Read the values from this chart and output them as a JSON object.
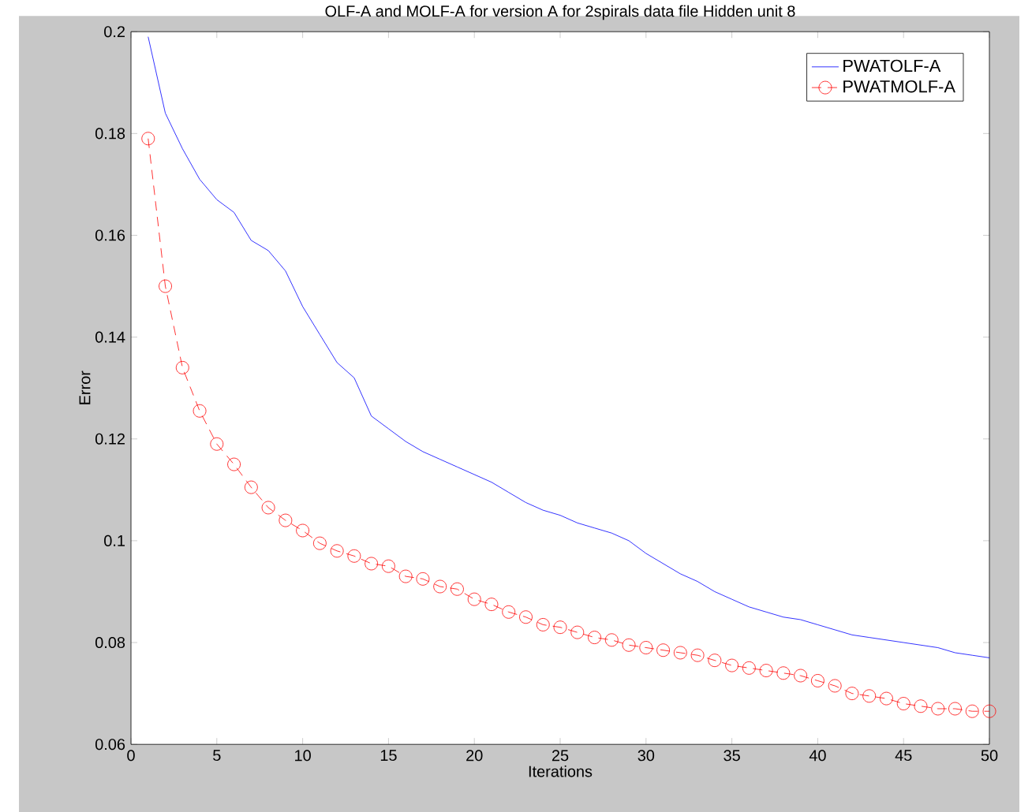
{
  "chart_data": {
    "type": "line",
    "title": "OLF-A and MOLF-A for version A for 2spirals data file Hidden unit 8",
    "xlabel": "Iterations",
    "ylabel": "Error",
    "x": [
      1,
      2,
      3,
      4,
      5,
      6,
      7,
      8,
      9,
      10,
      11,
      12,
      13,
      14,
      15,
      16,
      17,
      18,
      19,
      20,
      21,
      22,
      23,
      24,
      25,
      26,
      27,
      28,
      29,
      30,
      31,
      32,
      33,
      34,
      35,
      36,
      37,
      38,
      39,
      40,
      41,
      42,
      43,
      44,
      45,
      46,
      47,
      48,
      49,
      50
    ],
    "series": [
      {
        "name": "PWATOLF-A",
        "color": "#0000ff",
        "marker": "none",
        "line_style": "solid",
        "values": [
          0.199,
          0.184,
          0.177,
          0.171,
          0.167,
          0.1645,
          0.159,
          0.157,
          0.153,
          0.146,
          0.1405,
          0.135,
          0.132,
          0.1245,
          0.122,
          0.1195,
          0.1175,
          0.116,
          0.1145,
          0.113,
          0.1115,
          0.1095,
          0.1075,
          0.106,
          0.105,
          0.1035,
          0.1025,
          0.1015,
          0.1,
          0.0975,
          0.0955,
          0.0935,
          0.092,
          0.09,
          0.0885,
          0.087,
          0.086,
          0.085,
          0.0845,
          0.0835,
          0.0825,
          0.0815,
          0.081,
          0.0805,
          0.08,
          0.0795,
          0.079,
          0.078,
          0.0775,
          0.077
        ]
      },
      {
        "name": "PWATMOLF-A",
        "color": "#ff0000",
        "marker": "circle",
        "line_style": "dashed",
        "values": [
          0.179,
          0.15,
          0.134,
          0.1255,
          0.119,
          0.115,
          0.1105,
          0.1065,
          0.104,
          0.102,
          0.0995,
          0.098,
          0.097,
          0.0955,
          0.095,
          0.093,
          0.0925,
          0.091,
          0.0905,
          0.0885,
          0.0875,
          0.086,
          0.085,
          0.0835,
          0.083,
          0.082,
          0.081,
          0.0805,
          0.0795,
          0.079,
          0.0785,
          0.078,
          0.0775,
          0.0765,
          0.0755,
          0.075,
          0.0745,
          0.074,
          0.0735,
          0.0725,
          0.0715,
          0.07,
          0.0695,
          0.069,
          0.068,
          0.0675,
          0.067,
          0.067,
          0.0665,
          0.0665
        ]
      }
    ],
    "xlim": [
      0,
      50
    ],
    "ylim": [
      0.06,
      0.2
    ],
    "xticks": [
      0,
      5,
      10,
      15,
      20,
      25,
      30,
      35,
      40,
      45,
      50
    ],
    "yticks": [
      0.06,
      0.08,
      0.1,
      0.12,
      0.14,
      0.16,
      0.18,
      0.2
    ],
    "grid": false,
    "legend": "top right"
  }
}
